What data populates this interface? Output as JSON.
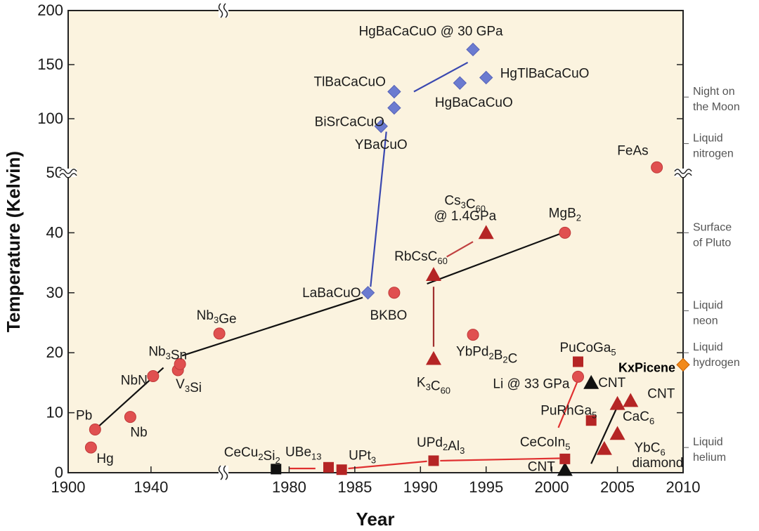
{
  "chart_data": {
    "type": "scatter",
    "title": "",
    "xlabel": "Year",
    "ylabel": "Temperature (Kelvin)",
    "x_tick_labels": [
      "1900",
      "1940",
      "1980",
      "1985",
      "1990",
      "1995",
      "2000",
      "2005",
      "2010"
    ],
    "y_tick_labels": [
      "0",
      "10",
      "20",
      "30",
      "40",
      "50",
      "100",
      "150",
      "200"
    ],
    "y_segments": [
      {
        "from": 0,
        "to": 50,
        "scale": "linear"
      },
      {
        "from": 50,
        "to": 200,
        "scale": "linear"
      }
    ],
    "x_segments": [
      {
        "from": 1900,
        "to": 1975,
        "scale": "linear"
      },
      {
        "from": 1975,
        "to": 2010,
        "scale": "linear"
      }
    ],
    "legend": "none",
    "grid": false,
    "reference_levels": [
      {
        "line1": "Night on",
        "line2": "the Moon",
        "value": 120
      },
      {
        "line1": "Liquid",
        "line2": "nitrogen",
        "value": 77
      },
      {
        "line1": "Surface",
        "line2": "of Pluto",
        "value": 40
      },
      {
        "line1": "Liquid",
        "line2": "neon",
        "value": 27
      },
      {
        "line1": "Liquid",
        "line2": "hydrogen",
        "value": 20
      },
      {
        "line1": "Liquid",
        "line2": "helium",
        "value": 4.2
      }
    ],
    "series": [
      {
        "marker": "circle",
        "color": "#e05050",
        "points": [
          {
            "label": "Hg",
            "x": 1911,
            "y": 4.2
          },
          {
            "label": "Pb",
            "x": 1913,
            "y": 7.2
          },
          {
            "label": "Nb",
            "x": 1930,
            "y": 9.3
          },
          {
            "label": "NbN",
            "x": 1941,
            "y": 16.1
          },
          {
            "label": "V",
            "sub": "3",
            "label2": "Si",
            "x": 1953,
            "y": 17.1
          },
          {
            "label": "Nb",
            "sub": "3",
            "label2": "Sn",
            "x": 1954,
            "y": 18.1
          },
          {
            "label": "Nb",
            "sub": "3",
            "label2": "Ge",
            "x": 1973,
            "y": 23.2
          },
          {
            "label": "BKBO",
            "x": 1988,
            "y": 30
          },
          {
            "label": "YbPd",
            "sub": "2",
            "label2": "B",
            "sub2": "2",
            "label3": "C",
            "x": 1994,
            "y": 23
          },
          {
            "label": "MgB",
            "sub": "2",
            "x": 2001,
            "y": 40
          },
          {
            "label": "Li @ 33 GPa",
            "x": 2002,
            "y": 16
          },
          {
            "label": "FeAs",
            "x": 2008,
            "y": 55
          }
        ]
      },
      {
        "marker": "diamond",
        "color": "#6b7bd0",
        "points": [
          {
            "label": "LaBaCuO",
            "x": 1986,
            "y": 30
          },
          {
            "label": "YBaCuO",
            "x": 1987,
            "y": 93
          },
          {
            "label": "BiSrCaCuO",
            "x": 1988,
            "y": 110
          },
          {
            "label": "TlBaCaCuO",
            "x": 1988,
            "y": 125
          },
          {
            "label": "HgBaCaCuO",
            "x": 1993,
            "y": 133
          },
          {
            "label": "HgTlBaCaCuO",
            "x": 1995,
            "y": 138
          },
          {
            "label": "HgBaCaCuO @ 30 GPa",
            "x": 1994,
            "y": 164
          }
        ]
      },
      {
        "marker": "triangle",
        "color": "#b52525",
        "points": [
          {
            "label": "K",
            "sub": "3",
            "label2": "C",
            "sub2": "60",
            "x": 1991,
            "y": 19
          },
          {
            "label": "RbCsC",
            "sub": "60",
            "x": 1991,
            "y": 33
          },
          {
            "label": "Cs",
            "sub": "3",
            "label2": "C",
            "sub2": "60",
            "note": "@ 1.4GPa",
            "x": 1995,
            "y": 40
          },
          {
            "label": "CaC",
            "sub": "6",
            "x": 2005,
            "y": 11.5
          },
          {
            "label": "YbC",
            "sub": "6",
            "x": 2005,
            "y": 6.5
          },
          {
            "label": "diamond",
            "x": 2004,
            "y": 4
          },
          {
            "label": "CNT",
            "x": 2006,
            "y": 12
          }
        ]
      },
      {
        "marker": "triangle",
        "color": "#111111",
        "points": [
          {
            "label": "CNT",
            "x": 2001,
            "y": 0.5
          },
          {
            "label": "CNT",
            "x": 2003,
            "y": 15
          }
        ]
      },
      {
        "marker": "square",
        "color": "#b52525",
        "points": [
          {
            "label": "UBe",
            "sub": "13",
            "x": 1983,
            "y": 0.9
          },
          {
            "label": "UPt",
            "sub": "3",
            "x": 1984,
            "y": 0.5
          },
          {
            "label": "UPd",
            "sub": "2",
            "label2": "Al",
            "sub2": "3",
            "x": 1991,
            "y": 2
          },
          {
            "label": "CeCoIn",
            "sub": "5",
            "x": 2001,
            "y": 2.3
          },
          {
            "label": "PuRhGa",
            "sub": "5",
            "x": 2003,
            "y": 8.7
          },
          {
            "label": "PuCoGa",
            "sub": "5",
            "x": 2002,
            "y": 18.5
          }
        ]
      },
      {
        "marker": "square",
        "color": "#111111",
        "points": [
          {
            "label": "CeCu",
            "sub": "2",
            "label2": "Si",
            "sub2": "2",
            "x": 1979,
            "y": 0.6
          }
        ]
      },
      {
        "marker": "diamond",
        "color": "#f28a1c",
        "points": [
          {
            "label": "KxPicene",
            "x": 2010,
            "y": 18
          }
        ]
      }
    ]
  }
}
